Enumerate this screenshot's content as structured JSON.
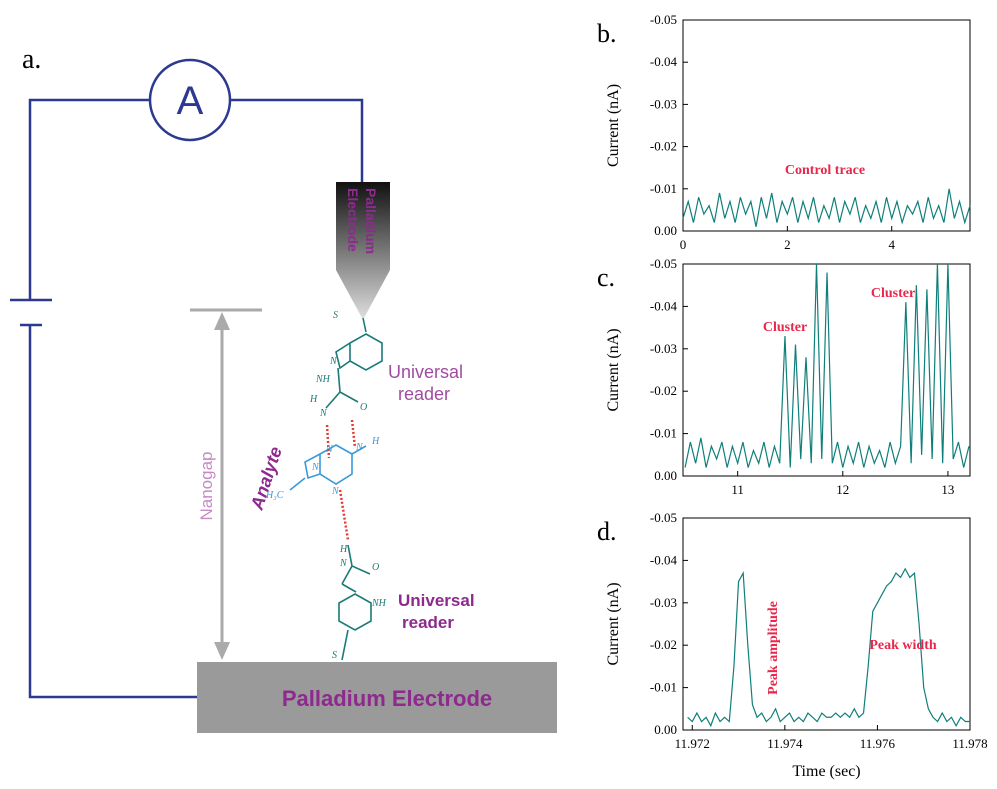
{
  "diagram": {
    "panel_label": "a.",
    "meter": "A",
    "top_electrode": [
      "Palladium",
      "Electrode"
    ],
    "top_reader": [
      "Universal",
      "reader"
    ],
    "gap": "Nanogap",
    "analyte": "Analyte",
    "bottom_reader": [
      "Universal",
      "reader"
    ],
    "bottom_electrode": "Palladium Electrode",
    "atoms": [
      "S",
      "N",
      "NH",
      "H",
      "N",
      "O",
      "N",
      "N",
      "H",
      "H₃C",
      "N",
      "N",
      "H",
      "N",
      "O",
      "NH",
      "S"
    ]
  },
  "chart_data": [
    {
      "type": "line",
      "panel_label": "b.",
      "ylabel": "Current (nA)",
      "color": "#0f7f7a",
      "annotations": [
        "Control trace"
      ],
      "xlim": [
        0,
        5.5
      ],
      "xticks": [
        0,
        2,
        4
      ],
      "ylim": [
        0,
        -0.05
      ],
      "yticks": [
        {
          "value": 0,
          "label": "0.00"
        },
        -0.01,
        -0.02,
        -0.03,
        -0.04,
        -0.05
      ],
      "x": [
        0,
        0.1,
        0.2,
        0.3,
        0.4,
        0.5,
        0.6,
        0.7,
        0.8,
        0.9,
        1,
        1.1,
        1.2,
        1.3,
        1.4,
        1.5,
        1.6,
        1.7,
        1.8,
        1.9,
        2,
        2.1,
        2.2,
        2.3,
        2.4,
        2.5,
        2.6,
        2.7,
        2.8,
        2.9,
        3,
        3.1,
        3.2,
        3.3,
        3.4,
        3.5,
        3.6,
        3.7,
        3.8,
        3.9,
        4,
        4.1,
        4.2,
        4.3,
        4.4,
        4.5,
        4.6,
        4.7,
        4.8,
        4.9,
        5,
        5.1,
        5.2,
        5.3,
        5.4,
        5.5
      ],
      "values": [
        -0.003,
        -0.007,
        -0.002,
        -0.008,
        -0.004,
        -0.006,
        -0.002,
        -0.009,
        -0.003,
        -0.007,
        -0.002,
        -0.008,
        -0.004,
        -0.007,
        -0.001,
        -0.008,
        -0.003,
        -0.009,
        -0.002,
        -0.007,
        -0.004,
        -0.008,
        -0.002,
        -0.007,
        -0.003,
        -0.008,
        -0.002,
        -0.006,
        -0.003,
        -0.008,
        -0.002,
        -0.007,
        -0.004,
        -0.008,
        -0.002,
        -0.006,
        -0.003,
        -0.007,
        -0.002,
        -0.008,
        -0.003,
        -0.007,
        -0.002,
        -0.006,
        -0.004,
        -0.007,
        -0.002,
        -0.008,
        -0.003,
        -0.006,
        -0.002,
        -0.01,
        -0.003,
        -0.007,
        -0.002,
        -0.006
      ]
    },
    {
      "type": "line",
      "panel_label": "c.",
      "ylabel": "Current (nA)",
      "color": "#0f7f7a",
      "annotations": [
        "Cluster",
        "Cluster"
      ],
      "xlim": [
        10.48,
        13.21
      ],
      "xticks": [
        11,
        12,
        13
      ],
      "ylim": [
        0,
        -0.05
      ],
      "yticks": [
        {
          "value": 0,
          "label": "0.00"
        },
        -0.01,
        -0.02,
        -0.03,
        -0.04,
        -0.05
      ],
      "x": [
        10.5,
        10.55,
        10.6,
        10.65,
        10.7,
        10.75,
        10.8,
        10.85,
        10.9,
        10.95,
        11,
        11.05,
        11.1,
        11.15,
        11.2,
        11.25,
        11.3,
        11.35,
        11.4,
        11.45,
        11.5,
        11.55,
        11.6,
        11.65,
        11.7,
        11.75,
        11.8,
        11.85,
        11.9,
        11.95,
        12,
        12.05,
        12.1,
        12.15,
        12.2,
        12.25,
        12.3,
        12.35,
        12.4,
        12.45,
        12.5,
        12.55,
        12.6,
        12.65,
        12.7,
        12.75,
        12.8,
        12.85,
        12.9,
        12.95,
        13,
        13.05,
        13.1,
        13.15,
        13.2
      ],
      "values": [
        -0.002,
        -0.008,
        -0.003,
        -0.009,
        -0.002,
        -0.007,
        -0.004,
        -0.008,
        -0.002,
        -0.007,
        -0.003,
        -0.008,
        -0.002,
        -0.006,
        -0.003,
        -0.008,
        -0.002,
        -0.007,
        -0.003,
        -0.033,
        -0.002,
        -0.031,
        -0.004,
        -0.028,
        -0.003,
        -0.05,
        -0.004,
        -0.048,
        -0.003,
        -0.008,
        -0.002,
        -0.007,
        -0.003,
        -0.008,
        -0.002,
        -0.007,
        -0.003,
        -0.006,
        -0.002,
        -0.008,
        -0.003,
        -0.007,
        -0.041,
        -0.003,
        -0.045,
        -0.005,
        -0.044,
        -0.004,
        -0.05,
        -0.003,
        -0.05,
        -0.004,
        -0.008,
        -0.002,
        -0.007
      ]
    },
    {
      "type": "line",
      "panel_label": "d.",
      "ylabel": "Current (nA)",
      "xlabel": "Time (sec)",
      "color": "#0f7f7a",
      "annotations": [
        "Peak amplitude",
        "Peak width"
      ],
      "xlim": [
        11.9718,
        11.978
      ],
      "xticks": [
        11.972,
        11.974,
        11.976,
        11.978
      ],
      "ylim": [
        0,
        -0.05
      ],
      "yticks": [
        {
          "value": 0,
          "label": "0.00"
        },
        -0.01,
        -0.02,
        -0.03,
        -0.04,
        -0.05
      ],
      "x": [
        11.9719,
        11.972,
        11.9721,
        11.9722,
        11.9723,
        11.9724,
        11.9725,
        11.9726,
        11.9727,
        11.9728,
        11.9729,
        11.973,
        11.9731,
        11.9732,
        11.9733,
        11.9734,
        11.9735,
        11.9736,
        11.9737,
        11.9738,
        11.9739,
        11.974,
        11.9741,
        11.9742,
        11.9743,
        11.9744,
        11.9745,
        11.9746,
        11.9747,
        11.9748,
        11.9749,
        11.975,
        11.9751,
        11.9752,
        11.9753,
        11.9754,
        11.9755,
        11.9756,
        11.9757,
        11.9758,
        11.9759,
        11.976,
        11.9761,
        11.9762,
        11.9763,
        11.9764,
        11.9765,
        11.9766,
        11.9767,
        11.9768,
        11.9769,
        11.977,
        11.9771,
        11.9772,
        11.9773,
        11.9774,
        11.9775,
        11.9776,
        11.9777,
        11.9778,
        11.9779,
        11.978
      ],
      "values": [
        -0.003,
        -0.002,
        -0.004,
        -0.002,
        -0.003,
        -0.001,
        -0.004,
        -0.002,
        -0.003,
        -0.002,
        -0.015,
        -0.035,
        -0.037,
        -0.02,
        -0.006,
        -0.003,
        -0.004,
        -0.002,
        -0.003,
        -0.005,
        -0.002,
        -0.003,
        -0.004,
        -0.002,
        -0.003,
        -0.002,
        -0.004,
        -0.003,
        -0.002,
        -0.004,
        -0.003,
        -0.003,
        -0.004,
        -0.003,
        -0.004,
        -0.003,
        -0.005,
        -0.003,
        -0.004,
        -0.015,
        -0.028,
        -0.03,
        -0.032,
        -0.034,
        -0.035,
        -0.037,
        -0.036,
        -0.038,
        -0.036,
        -0.037,
        -0.025,
        -0.01,
        -0.005,
        -0.003,
        -0.002,
        -0.004,
        -0.002,
        -0.003,
        -0.001,
        -0.003,
        -0.002,
        -0.002
      ]
    }
  ]
}
